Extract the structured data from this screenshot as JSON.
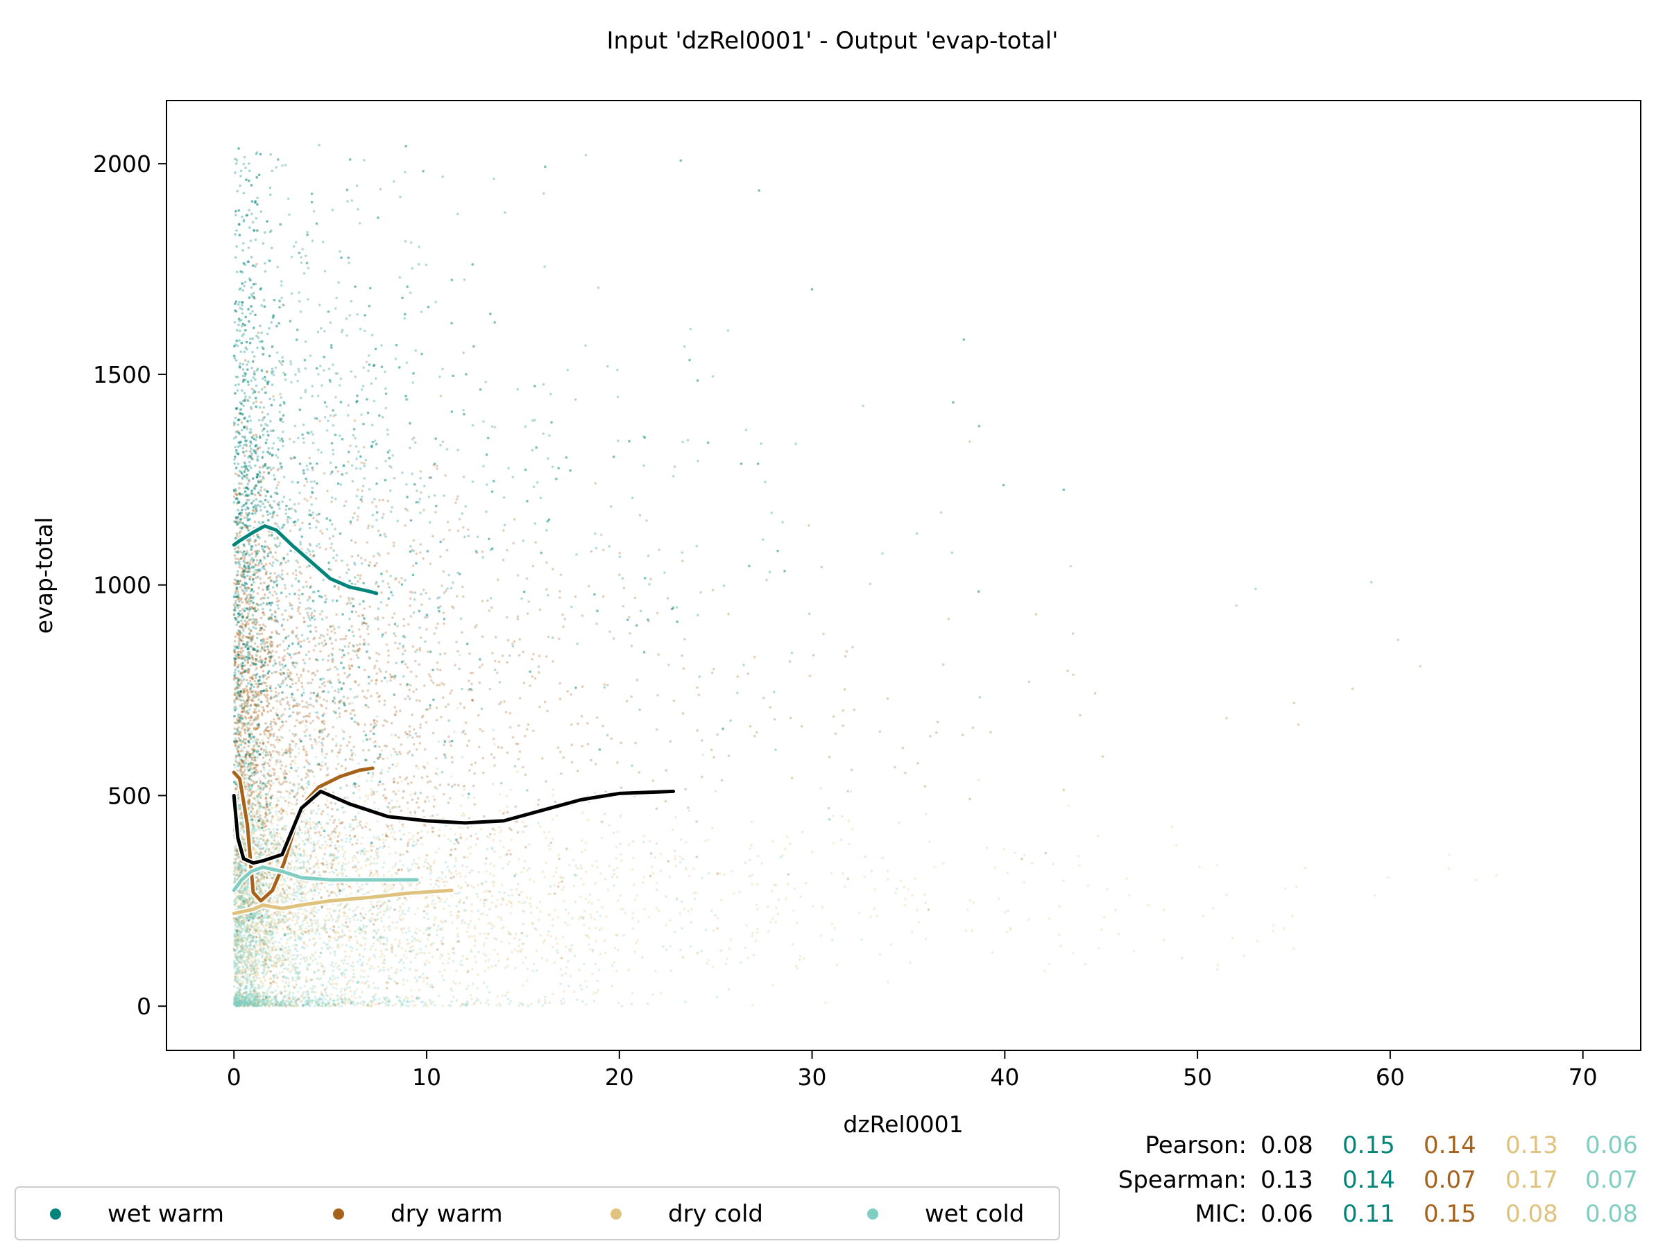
{
  "chart_data": {
    "type": "scatter",
    "title": "Input 'dzRel0001' - Output 'evap-total'",
    "xlabel": "dzRel0001",
    "ylabel": "evap-total",
    "xlim": [
      -3.5,
      73
    ],
    "ylim": [
      -105,
      2150
    ],
    "xticks": [
      0,
      10,
      20,
      30,
      40,
      50,
      60,
      70
    ],
    "yticks": [
      0,
      500,
      1000,
      1500,
      2000
    ],
    "grid": false,
    "legend_position": "bottom-left",
    "series": [
      {
        "name": "wet warm",
        "color": "#01857a",
        "cloud": {
          "center": [
            1.5,
            1150
          ],
          "x_spread": 6,
          "y_spread": 420,
          "x_max": 66,
          "n": 2600
        },
        "trend": {
          "x": [
            0,
            0.3,
            1.0,
            1.6,
            2.2,
            3.0,
            4.0,
            5.0,
            6.0,
            7.0,
            7.4
          ],
          "y": [
            1095,
            1105,
            1125,
            1140,
            1130,
            1095,
            1055,
            1015,
            995,
            985,
            980
          ]
        }
      },
      {
        "name": "dry warm",
        "color": "#a6611a",
        "cloud": {
          "center": [
            1.5,
            700
          ],
          "x_spread": 7,
          "y_spread": 300,
          "x_max": 68,
          "n": 2600
        },
        "trend": {
          "x": [
            0,
            0.3,
            0.7,
            1.0,
            1.4,
            2.0,
            2.6,
            3.2,
            3.8,
            4.4,
            5.5,
            6.5,
            7.2
          ],
          "y": [
            555,
            540,
            430,
            270,
            250,
            275,
            340,
            430,
            490,
            520,
            545,
            560,
            565
          ]
        }
      },
      {
        "name": "dry cold",
        "color": "#dfc27d",
        "cloud": {
          "center": [
            3,
            240
          ],
          "x_spread": 10,
          "y_spread": 160,
          "x_max": 66,
          "n": 2600
        },
        "trend": {
          "x": [
            0,
            1.0,
            1.5,
            2.5,
            3.5,
            5.0,
            7.0,
            9.0,
            11.3
          ],
          "y": [
            220,
            230,
            240,
            232,
            240,
            250,
            258,
            268,
            275
          ]
        }
      },
      {
        "name": "wet cold",
        "color": "#80cdc1",
        "cloud": {
          "center": [
            1,
            200
          ],
          "x_spread": 5,
          "y_spread": 220,
          "x_max": 65,
          "n": 2600
        },
        "trend": {
          "x": [
            0,
            0.4,
            0.9,
            1.5,
            2.5,
            3.5,
            5.0,
            7.0,
            9.5
          ],
          "y": [
            275,
            300,
            320,
            330,
            320,
            305,
            300,
            300,
            300
          ]
        }
      }
    ],
    "overall_trend": {
      "name": "all",
      "color": "#000000",
      "x": [
        0,
        0.2,
        0.5,
        1.0,
        1.5,
        2.5,
        3.5,
        4.5,
        6.0,
        8.0,
        10.0,
        12.0,
        14.0,
        16.0,
        18.0,
        20.0,
        22.8
      ],
      "y": [
        500,
        400,
        350,
        340,
        345,
        360,
        470,
        510,
        480,
        450,
        440,
        435,
        440,
        465,
        490,
        505,
        510
      ]
    },
    "stats": [
      {
        "label": "Pearson:",
        "values": [
          "0.08",
          "0.15",
          "0.14",
          "0.13",
          "0.06"
        ]
      },
      {
        "label": "Spearman:",
        "values": [
          "0.13",
          "0.14",
          "0.07",
          "0.17",
          "0.07"
        ]
      },
      {
        "label": "MIC:",
        "values": [
          "0.06",
          "0.11",
          "0.15",
          "0.08",
          "0.08"
        ]
      }
    ],
    "stats_colors": [
      "#000000",
      "#01857a",
      "#a6611a",
      "#dfc27d",
      "#80cdc1"
    ]
  }
}
